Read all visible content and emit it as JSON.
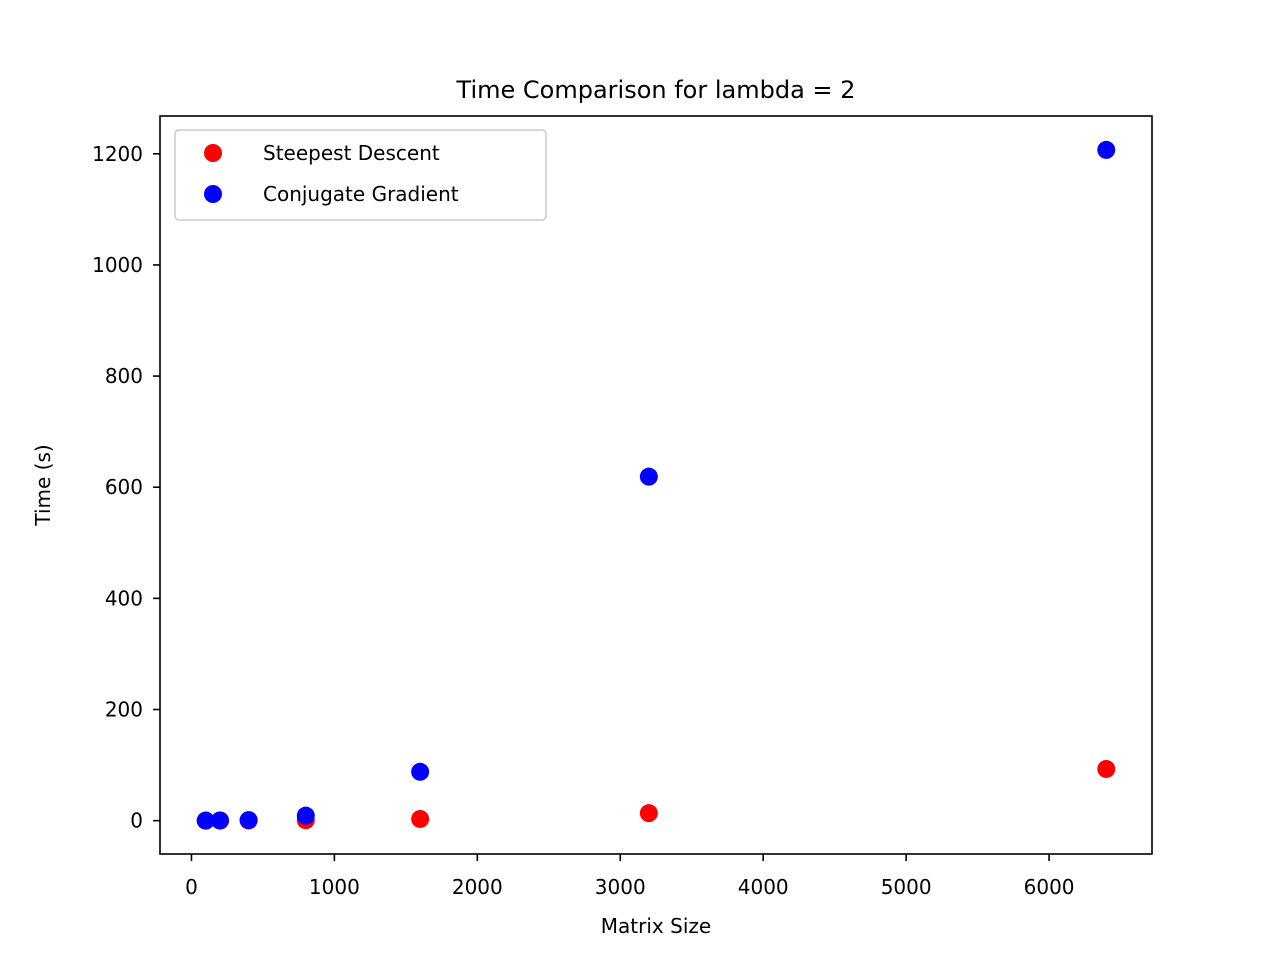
{
  "chart_data": {
    "type": "scatter",
    "title": "Time Comparison for lambda = 2",
    "xlabel": "Matrix Size",
    "ylabel": "Time (s)",
    "xlim": [
      -220,
      6720
    ],
    "ylim": [
      -60,
      1268
    ],
    "xticks": [
      0,
      1000,
      2000,
      3000,
      4000,
      5000,
      6000
    ],
    "yticks": [
      0,
      200,
      400,
      600,
      800,
      1000,
      1200
    ],
    "grid": false,
    "legend_position": "top-left",
    "series": [
      {
        "name": "Steepest Descent",
        "color": "#ff0000",
        "x": [
          100,
          200,
          400,
          800,
          1600,
          3200,
          6400
        ],
        "y": [
          0.05,
          0.1,
          0.3,
          0.8,
          3.0,
          13.5,
          93.0
        ]
      },
      {
        "name": "Conjugate Gradient",
        "color": "#0000ff",
        "x": [
          100,
          200,
          400,
          800,
          1600,
          3200,
          6400
        ],
        "y": [
          0.1,
          0.3,
          1.0,
          9.0,
          88.0,
          619.0,
          1207.0
        ]
      }
    ]
  }
}
